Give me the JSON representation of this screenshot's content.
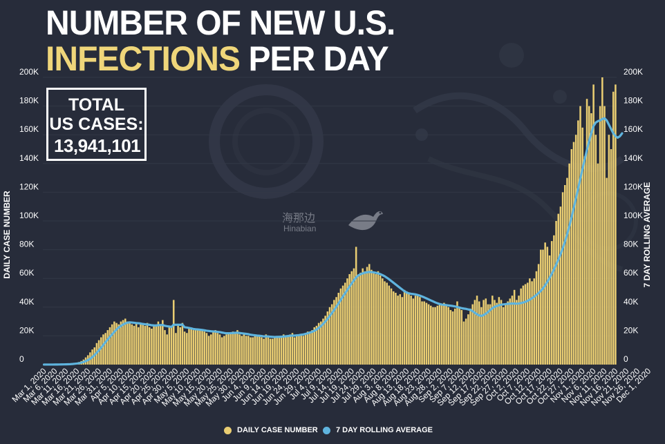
{
  "title": {
    "line1": "NUMBER OF NEW U.S.",
    "line2_highlight": "INFECTIONS",
    "line2_rest": " PER DAY"
  },
  "total_box": {
    "label1": "TOTAL",
    "label2": "US CASES:",
    "value": "13,941,101"
  },
  "watermark": {
    "cn": "海那边",
    "en": "Hinabian"
  },
  "colors": {
    "background": "#272c3a",
    "bar": "#e9cd72",
    "line": "#5fb4de",
    "highlight": "#efd67a"
  },
  "legend": [
    {
      "label": "DAILY CASE NUMBER",
      "color": "#e9cd72"
    },
    {
      "label": "7 DAY ROLLING AVERAGE",
      "color": "#5fb4de"
    }
  ],
  "chart_data": {
    "type": "bar",
    "title": "NUMBER OF NEW U.S. INFECTIONS PER DAY",
    "ylabel_left": "DAILY CASE NUMBER",
    "ylabel_right": "7 DAY ROLLING AVERAGE",
    "ylim": [
      0,
      200000
    ],
    "y_ticks": [
      "0",
      "20K",
      "40K",
      "60K",
      "80K",
      "100K",
      "120K",
      "140K",
      "160K",
      "180K",
      "200K"
    ],
    "x_start_date": "2020-03-01",
    "x_tick_labels": [
      "Mar 1, 2020",
      "Mar 6, 2020",
      "Mar 11, 2020",
      "Mar 16, 2020",
      "Mar 21, 2020",
      "Mar 26, 2020",
      "Mar 31, 2020",
      "Apr 5, 2020",
      "Apr 10, 2020",
      "Apr 15, 2020",
      "Apr 20, 2020",
      "Apr 25, 2020",
      "Apr 30, 2020",
      "May 5, 2020",
      "May 10, 2020",
      "May 15, 2020",
      "May 20, 2020",
      "May 25, 2020",
      "May 30, 2020",
      "Jun 4, 2020",
      "Jun 9, 2020",
      "Jun 14, 2020",
      "Jun 19, 2020",
      "Jun 24, 2020",
      "Jun 29, 2020",
      "Jul 4, 2020",
      "Jul 9, 2020",
      "Jul 14, 2020",
      "Jul 19, 2020",
      "Jul 24, 2020",
      "Jul 29, 2020",
      "Aug 3, 2020",
      "Aug 8, 2020",
      "Aug 13, 2020",
      "Aug 18, 2020",
      "Aug 23, 2020",
      "Aug 28, 2020",
      "Sep 2, 2020",
      "Sep 7, 2020",
      "Sep 12, 2020",
      "Sep 17, 2020",
      "Sep 22, 2020",
      "Sep 27, 2020",
      "Oct 2, 2020",
      "Oct 7, 2020",
      "Oct 12, 2020",
      "Oct 17, 2020",
      "Oct 22, 2020",
      "Oct 27, 2020",
      "Nov 1, 2020",
      "Nov 6, 2020",
      "Nov 11, 2020",
      "Nov 16, 2020",
      "Nov 21, 2020",
      "Nov 26, 2020",
      "Dec 1, 2020"
    ],
    "daily_cases": [
      20,
      20,
      30,
      40,
      60,
      70,
      100,
      120,
      150,
      200,
      250,
      350,
      450,
      700,
      1000,
      1200,
      1800,
      2500,
      3500,
      5000,
      6500,
      8500,
      10500,
      12000,
      15000,
      17000,
      19000,
      21000,
      22000,
      24000,
      26000,
      28000,
      30000,
      29000,
      28000,
      30000,
      31000,
      32000,
      30000,
      29000,
      28000,
      27000,
      29000,
      26000,
      28000,
      28000,
      27000,
      29000,
      26000,
      25000,
      27000,
      28000,
      30000,
      27000,
      31000,
      24000,
      21000,
      26000,
      27000,
      45000,
      22000,
      28000,
      26000,
      29000,
      23000,
      22000,
      26000,
      25000,
      24000,
      24000,
      24000,
      24000,
      24000,
      23000,
      22000,
      20000,
      21000,
      23000,
      24000,
      22000,
      21000,
      19000,
      20000,
      21000,
      22000,
      22000,
      23000,
      22000,
      24000,
      21000,
      20000,
      21000,
      20000,
      20000,
      19000,
      19000,
      20000,
      20000,
      20000,
      19000,
      18000,
      21000,
      20000,
      18000,
      18000,
      19000,
      19000,
      20000,
      20000,
      21000,
      19000,
      20000,
      21000,
      22000,
      19000,
      20000,
      21000,
      21000,
      20000,
      22000,
      23000,
      23000,
      24000,
      26000,
      27000,
      29000,
      30000,
      32000,
      34000,
      37000,
      40000,
      42000,
      45000,
      47000,
      50000,
      53000,
      55000,
      57000,
      60000,
      63000,
      65000,
      67000,
      82000,
      62000,
      64000,
      67000,
      65000,
      68000,
      70000,
      66000,
      64000,
      63000,
      65000,
      62000,
      60000,
      58000,
      57000,
      55000,
      53000,
      51000,
      50000,
      48000,
      49000,
      47000,
      52000,
      51000,
      50000,
      48000,
      46000,
      48000,
      48000,
      47000,
      44000,
      44000,
      43000,
      42000,
      41000,
      40000,
      40000,
      41000,
      42000,
      42000,
      43000,
      42000,
      40000,
      38000,
      37000,
      39000,
      44000,
      40000,
      38000,
      30000,
      32000,
      35000,
      39000,
      42000,
      45000,
      48000,
      44000,
      40000,
      45000,
      46000,
      42000,
      42000,
      48000,
      45000,
      43000,
      47000,
      45000,
      40000,
      42000,
      44000,
      46000,
      48000,
      52000,
      45000,
      48000,
      53000,
      55000,
      56000,
      57000,
      60000,
      58000,
      60000,
      65000,
      70000,
      80000,
      80000,
      85000,
      82000,
      76000,
      86000,
      90000,
      100000,
      105000,
      110000,
      120000,
      125000,
      130000,
      140000,
      150000,
      155000,
      160000,
      170000,
      180000,
      165000,
      145000,
      185000,
      180000,
      175000,
      195000,
      160000,
      140000,
      180000,
      200000,
      180000,
      130000,
      160000,
      150000,
      190000,
      195000
    ],
    "rolling_avg_7day": [
      20,
      20,
      25,
      30,
      40,
      50,
      70,
      90,
      110,
      140,
      180,
      240,
      310,
      420,
      580,
      750,
      970,
      1300,
      1800,
      2400,
      3100,
      4000,
      5200,
      6600,
      8200,
      9900,
      11800,
      13700,
      15600,
      17500,
      19300,
      21000,
      22800,
      24400,
      25800,
      26900,
      27900,
      28700,
      29200,
      29400,
      29300,
      29100,
      28900,
      28800,
      28600,
      28300,
      28100,
      27900,
      27700,
      27400,
      27300,
      27200,
      27500,
      27500,
      27600,
      27000,
      26700,
      26500,
      26200,
      27800,
      27700,
      27800,
      27700,
      27900,
      26000,
      25800,
      25500,
      25200,
      24800,
      24600,
      24500,
      24300,
      24100,
      23900,
      23600,
      23400,
      23200,
      23100,
      23000,
      22800,
      22600,
      22300,
      22000,
      21800,
      21800,
      21900,
      22000,
      22100,
      22200,
      22000,
      21800,
      21600,
      21400,
      21200,
      20800,
      20600,
      20400,
      20200,
      20100,
      19900,
      19600,
      19700,
      19600,
      19400,
      19300,
      19200,
      19300,
      19300,
      19400,
      19600,
      19700,
      19900,
      20100,
      20200,
      20200,
      20400,
      20500,
      20800,
      21000,
      21400,
      21800,
      22300,
      22800,
      23500,
      24400,
      25500,
      26800,
      28300,
      30000,
      31800,
      33800,
      35900,
      38000,
      40300,
      42600,
      45000,
      47400,
      49700,
      52000,
      54300,
      56500,
      58700,
      60700,
      62100,
      62900,
      63500,
      64000,
      64300,
      64500,
      64400,
      64200,
      63900,
      63500,
      63000,
      62300,
      61500,
      60500,
      59400,
      58200,
      57000,
      55800,
      54600,
      53400,
      52200,
      51000,
      50200,
      49600,
      49300,
      49100,
      48900,
      48500,
      48000,
      47400,
      46800,
      46100,
      45400,
      44700,
      44000,
      43300,
      42700,
      42200,
      41800,
      41600,
      41400,
      41200,
      41000,
      40800,
      40500,
      40100,
      39700,
      39300,
      39000,
      38800,
      38400,
      38100,
      37200,
      36100,
      35000,
      34200,
      33900,
      34500,
      35400,
      36600,
      38000,
      39300,
      40200,
      40800,
      41300,
      41700,
      41900,
      42100,
      42300,
      42400,
      42500,
      42500,
      42400,
      42500,
      42800,
      43200,
      43700,
      44400,
      45200,
      46200,
      47300,
      48500,
      49800,
      51300,
      53100,
      55200,
      57600,
      60300,
      63200,
      66300,
      69600,
      73100,
      76900,
      81000,
      85600,
      90700,
      96300,
      102500,
      109000,
      115700,
      122600,
      129500,
      136300,
      143000,
      149500,
      155600,
      161200,
      166000,
      168500,
      169500,
      170000,
      171000,
      171500,
      170000,
      167000,
      164000,
      161000,
      159000,
      158000,
      159000,
      161000
    ]
  }
}
